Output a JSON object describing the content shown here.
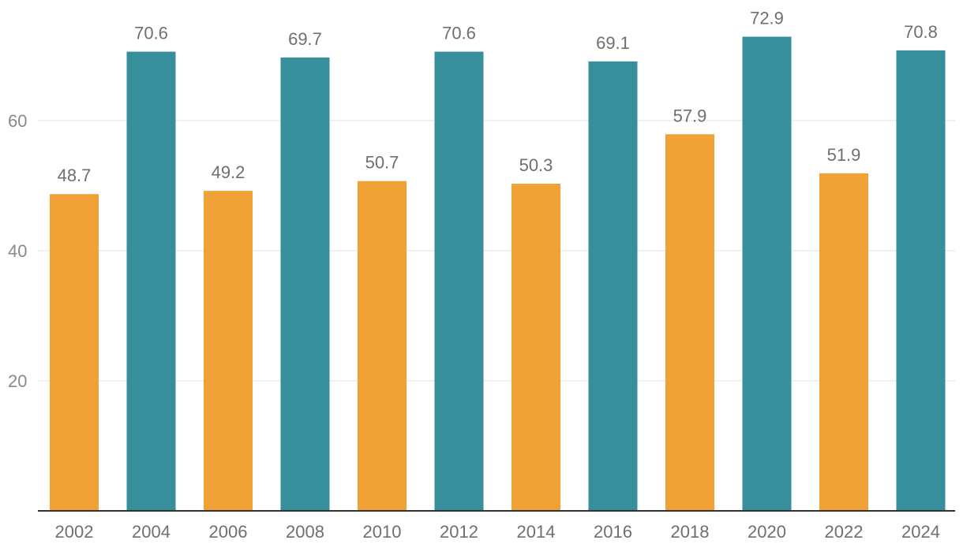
{
  "chart_data": {
    "type": "bar",
    "title": "",
    "xlabel": "",
    "ylabel": "",
    "ylim": [
      0,
      80
    ],
    "yticks": [
      20,
      40,
      60
    ],
    "grid": true,
    "categories": [
      "2002",
      "2004",
      "2006",
      "2008",
      "2010",
      "2012",
      "2014",
      "2016",
      "2018",
      "2020",
      "2022",
      "2024"
    ],
    "values": [
      48.7,
      70.6,
      49.2,
      69.7,
      50.7,
      70.6,
      50.3,
      69.1,
      57.9,
      72.9,
      51.9,
      70.8
    ],
    "value_labels": [
      "48.7",
      "70.6",
      "49.2",
      "69.7",
      "50.7",
      "70.6",
      "50.3",
      "69.1",
      "57.9",
      "72.9",
      "51.9",
      "70.8"
    ],
    "colors": {
      "midterm": "#f0a236",
      "presidential": "#368f9b",
      "grid": "#e3e3e3",
      "axis": "#333333"
    },
    "bar_color_keys": [
      "midterm",
      "presidential",
      "midterm",
      "presidential",
      "midterm",
      "presidential",
      "midterm",
      "presidential",
      "midterm",
      "presidential",
      "midterm",
      "presidential"
    ]
  }
}
